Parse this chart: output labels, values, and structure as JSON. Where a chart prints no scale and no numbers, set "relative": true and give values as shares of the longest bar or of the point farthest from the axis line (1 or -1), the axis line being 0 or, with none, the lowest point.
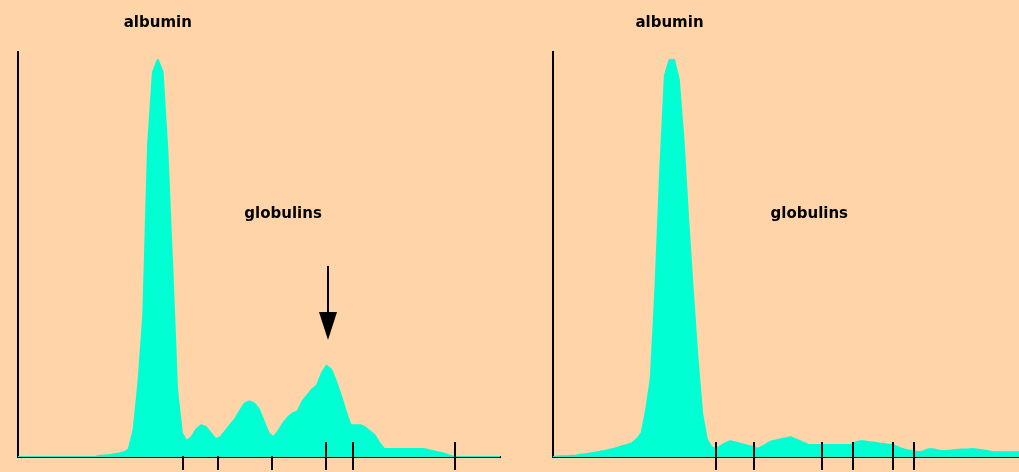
{
  "chart_data": [
    {
      "type": "area",
      "relative": true,
      "color": "#00ffd2",
      "categories": [
        null,
        null,
        null,
        null,
        null,
        null,
        null,
        null,
        null,
        null,
        null,
        null,
        null,
        null,
        null,
        null,
        null,
        null,
        null,
        null,
        null,
        null,
        null,
        null,
        null,
        null,
        null,
        null,
        null,
        null,
        null,
        null,
        null,
        null,
        null,
        null,
        null,
        null,
        null,
        null,
        null,
        null,
        null,
        null,
        null,
        null,
        null,
        null,
        null,
        null,
        null,
        null,
        null,
        null,
        null,
        null,
        null,
        null,
        null,
        null,
        null,
        null,
        null,
        null,
        null,
        null,
        null,
        null,
        null,
        null,
        null,
        null,
        null,
        null,
        null,
        null,
        null,
        null,
        null,
        null,
        null,
        null,
        null,
        null,
        null,
        null,
        null,
        null,
        null,
        null,
        null,
        null,
        null,
        null,
        null,
        null,
        null,
        null,
        null,
        null,
        null
      ],
      "values": [
        0,
        0,
        0,
        0,
        0,
        0,
        0,
        0,
        0,
        0,
        0,
        0,
        0,
        0,
        0,
        0,
        0,
        0.003,
        0.004,
        0.005,
        0.007,
        0.009,
        0.012,
        0.02,
        0.07,
        0.19,
        0.36,
        0.79,
        0.97,
        1,
        0.97,
        0.77,
        0.48,
        0.17,
        0.06,
        0.04,
        0.05,
        0.07,
        0.08,
        0.075,
        0.06,
        0.045,
        0.05,
        0.065,
        0.08,
        0.095,
        0.115,
        0.135,
        0.14,
        0.135,
        0.12,
        0.09,
        0.06,
        0.05,
        0.065,
        0.085,
        0.1,
        0.11,
        0.115,
        0.14,
        0.155,
        0.17,
        0.18,
        0.21,
        0.23,
        0.22,
        0.19,
        0.155,
        0.115,
        0.08,
        0.08,
        0.08,
        0.075,
        0.065,
        0.055,
        0.035,
        0.02,
        0.02,
        0.02,
        0.02,
        0.02,
        0.02,
        0.02,
        0.02,
        0.02,
        0.018,
        0.015,
        0.012,
        0.01,
        0.006,
        0.002,
        0,
        0,
        0,
        0,
        0,
        0,
        0,
        0,
        0,
        0
      ],
      "annotations": [
        "albumin",
        "globulins"
      ]
    },
    {
      "type": "area",
      "relative": true,
      "color": "#00ffd2",
      "categories": [
        null,
        null,
        null,
        null,
        null,
        null,
        null,
        null,
        null,
        null,
        null,
        null,
        null,
        null,
        null,
        null,
        null,
        null,
        null,
        null,
        null,
        null,
        null,
        null,
        null,
        null,
        null,
        null,
        null,
        null,
        null,
        null,
        null,
        null,
        null,
        null,
        null,
        null,
        null,
        null,
        null,
        null,
        null,
        null,
        null,
        null,
        null,
        null,
        null,
        null,
        null,
        null,
        null,
        null,
        null,
        null,
        null,
        null,
        null,
        null,
        null,
        null,
        null,
        null,
        null,
        null,
        null,
        null,
        null,
        null,
        null,
        null,
        null,
        null,
        null,
        null,
        null,
        null,
        null,
        null,
        null,
        null,
        null,
        null,
        null,
        null,
        null,
        null,
        null,
        null,
        null,
        null,
        null,
        null,
        null,
        null,
        null,
        null,
        null,
        null,
        null
      ],
      "values": [
        0,
        0.001,
        0.002,
        0.002,
        0.003,
        0.004,
        0.006,
        0.007,
        0.009,
        0.011,
        0.013,
        0.015,
        0.018,
        0.02,
        0.024,
        0.028,
        0.031,
        0.035,
        0.045,
        0.06,
        0.12,
        0.2,
        0.43,
        0.72,
        0.96,
        1,
        1,
        0.95,
        0.8,
        0.6,
        0.42,
        0.25,
        0.11,
        0.045,
        0.025,
        0.02,
        0.028,
        0.035,
        0.04,
        0.037,
        0.034,
        0.031,
        0.028,
        0.025,
        0.021,
        0.027,
        0.034,
        0.04,
        0.042,
        0.045,
        0.047,
        0.05,
        0.045,
        0.04,
        0.035,
        0.03,
        0.03,
        0.03,
        0.03,
        0.03,
        0.03,
        0.03,
        0.03,
        0.03,
        0.03,
        0.037,
        0.04,
        0.039,
        0.037,
        0.036,
        0.034,
        0.033,
        0.031,
        0.03,
        0.025,
        0.02,
        0.017,
        0.015,
        0.013,
        0.012,
        0.017,
        0.02,
        0.018,
        0.016,
        0.015,
        0.016,
        0.017,
        0.018,
        0.019,
        0.019,
        0.02,
        0.019,
        0.017,
        0.015,
        0.013,
        0.012,
        0.012,
        0.012,
        0.012,
        0.012,
        0.012
      ],
      "annotations": [
        "albumin",
        "globulins"
      ]
    }
  ]
}
